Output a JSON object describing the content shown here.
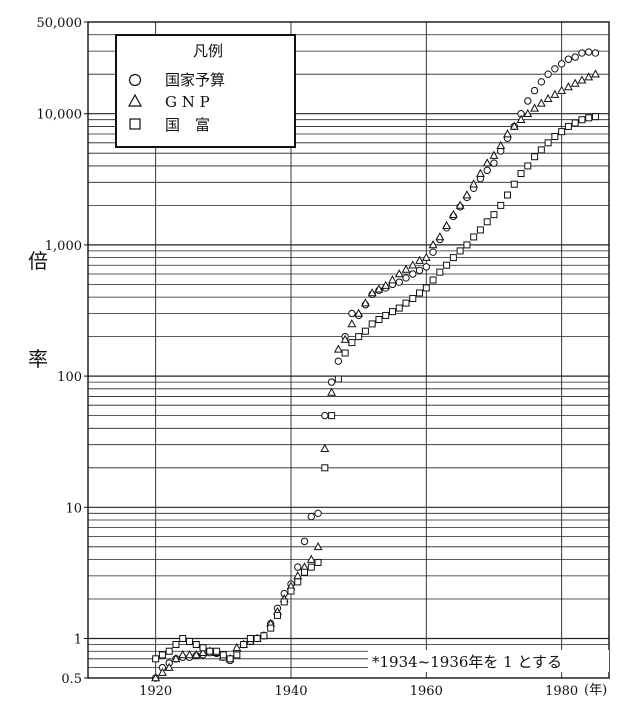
{
  "chart_data": {
    "type": "scatter",
    "title": "",
    "ylabel_chars": [
      "倍",
      "率"
    ],
    "x_unit": "(年)",
    "y_scale": "log",
    "xlim": [
      1910,
      1987
    ],
    "ylim": [
      0.5,
      50000
    ],
    "grid": true,
    "x_ticks": [
      1920,
      1940,
      1960,
      1980
    ],
    "x_tick_labels": [
      "1920",
      "1940",
      "1960",
      "1980"
    ],
    "y_ticks": [
      0.5,
      1,
      10,
      100,
      1000,
      10000,
      50000
    ],
    "y_tick_labels": [
      "0.5",
      "1",
      "10",
      "100",
      "1,000",
      "10,000",
      "50,000"
    ],
    "legend": {
      "title": "凡例",
      "position": "top-left",
      "entries": [
        {
          "symbol": "circle",
          "label": "国家予算"
        },
        {
          "symbol": "triangle",
          "label": "G N P"
        },
        {
          "symbol": "square",
          "label": "国　富"
        }
      ]
    },
    "note": "*1934~1936年を 1 とする",
    "series": [
      {
        "name": "国家予算",
        "marker": "circle",
        "x": [
          1920,
          1921,
          1922,
          1923,
          1924,
          1925,
          1926,
          1927,
          1928,
          1929,
          1930,
          1931,
          1932,
          1933,
          1934,
          1935,
          1936,
          1937,
          1938,
          1939,
          1940,
          1941,
          1942,
          1943,
          1944,
          1945,
          1946,
          1947,
          1948,
          1949,
          1950,
          1951,
          1952,
          1953,
          1954,
          1955,
          1956,
          1957,
          1958,
          1959,
          1960,
          1961,
          1962,
          1963,
          1964,
          1965,
          1966,
          1967,
          1968,
          1969,
          1970,
          1971,
          1972,
          1973,
          1974,
          1975,
          1976,
          1977,
          1978,
          1979,
          1980,
          1981,
          1982,
          1983,
          1984,
          1985
        ],
        "y": [
          0.5,
          0.6,
          0.65,
          0.7,
          0.72,
          0.72,
          0.74,
          0.75,
          0.78,
          0.77,
          0.72,
          0.68,
          0.8,
          0.9,
          0.95,
          1.0,
          1.05,
          1.3,
          1.7,
          2.2,
          2.6,
          3.5,
          5.5,
          8.5,
          9,
          50,
          90,
          130,
          200,
          300,
          290,
          350,
          420,
          450,
          470,
          500,
          520,
          560,
          600,
          640,
          680,
          880,
          1100,
          1350,
          1650,
          1950,
          2300,
          2700,
          3200,
          3700,
          4200,
          5200,
          6500,
          8000,
          10000,
          12500,
          15000,
          17500,
          20000,
          22000,
          24000,
          26000,
          27000,
          29000,
          29500,
          29000
        ]
      },
      {
        "name": "GNP",
        "marker": "triangle",
        "x": [
          1920,
          1921,
          1922,
          1923,
          1924,
          1925,
          1926,
          1927,
          1928,
          1929,
          1930,
          1931,
          1932,
          1933,
          1934,
          1935,
          1936,
          1937,
          1938,
          1939,
          1940,
          1941,
          1942,
          1943,
          1944,
          1945,
          1946,
          1947,
          1948,
          1949,
          1950,
          1951,
          1952,
          1953,
          1954,
          1955,
          1956,
          1957,
          1958,
          1959,
          1960,
          1961,
          1962,
          1963,
          1964,
          1965,
          1966,
          1967,
          1968,
          1969,
          1970,
          1971,
          1972,
          1973,
          1974,
          1975,
          1976,
          1977,
          1978,
          1979,
          1980,
          1981,
          1982,
          1983,
          1984,
          1985
        ],
        "y": [
          0.5,
          0.55,
          0.6,
          0.7,
          0.75,
          0.75,
          0.75,
          0.78,
          0.8,
          0.78,
          0.72,
          0.7,
          0.85,
          0.9,
          0.95,
          1.0,
          1.05,
          1.3,
          1.6,
          2.0,
          2.5,
          3.0,
          3.5,
          4.0,
          5.0,
          28,
          75,
          160,
          190,
          250,
          300,
          360,
          430,
          460,
          490,
          540,
          600,
          650,
          700,
          760,
          800,
          1000,
          1150,
          1400,
          1700,
          2000,
          2400,
          2900,
          3500,
          4200,
          4800,
          5700,
          7000,
          8000,
          9000,
          10000,
          11000,
          12000,
          13000,
          14000,
          15000,
          16000,
          17000,
          18000,
          19000,
          20000
        ]
      },
      {
        "name": "国富",
        "marker": "square",
        "x": [
          1920,
          1921,
          1922,
          1923,
          1924,
          1925,
          1926,
          1927,
          1928,
          1929,
          1930,
          1931,
          1932,
          1933,
          1934,
          1935,
          1936,
          1937,
          1938,
          1939,
          1940,
          1941,
          1942,
          1943,
          1944,
          1945,
          1946,
          1947,
          1948,
          1949,
          1950,
          1951,
          1952,
          1953,
          1954,
          1955,
          1956,
          1957,
          1958,
          1959,
          1960,
          1961,
          1962,
          1963,
          1964,
          1965,
          1966,
          1967,
          1968,
          1969,
          1970,
          1971,
          1972,
          1973,
          1974,
          1975,
          1976,
          1977,
          1978,
          1979,
          1980,
          1981,
          1982,
          1983,
          1984,
          1985
        ],
        "y": [
          0.7,
          0.75,
          0.8,
          0.9,
          1.0,
          0.95,
          0.9,
          0.85,
          0.8,
          0.8,
          0.75,
          0.7,
          0.75,
          0.9,
          1.0,
          1.0,
          1.05,
          1.2,
          1.5,
          1.9,
          2.3,
          2.7,
          3.2,
          3.5,
          3.8,
          20,
          50,
          95,
          150,
          180,
          200,
          220,
          250,
          270,
          290,
          310,
          330,
          360,
          390,
          430,
          470,
          540,
          620,
          700,
          800,
          900,
          1000,
          1150,
          1300,
          1500,
          1700,
          2000,
          2400,
          2900,
          3500,
          4000,
          4700,
          5300,
          6000,
          6700,
          7300,
          8000,
          8500,
          9000,
          9300,
          9500
        ]
      }
    ]
  }
}
